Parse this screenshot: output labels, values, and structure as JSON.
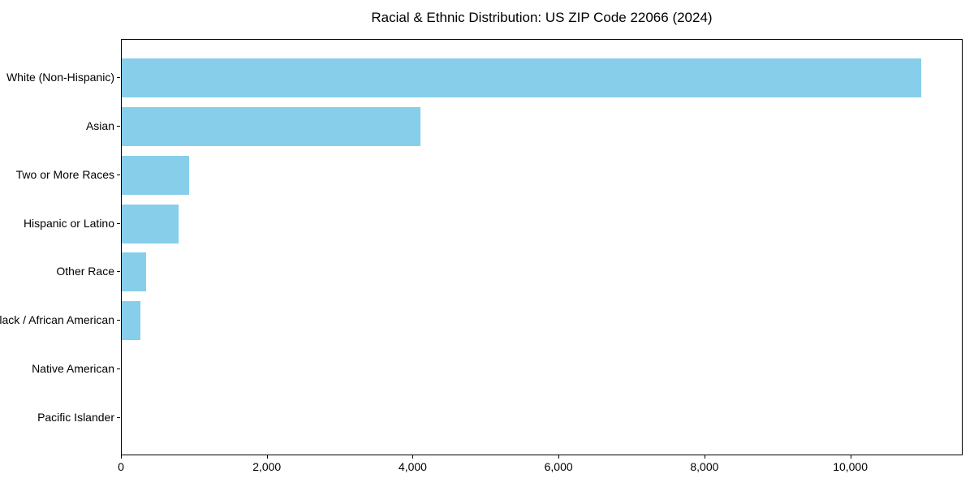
{
  "title": "Racial & Ethnic Distribution: US ZIP Code 22066 (2024)",
  "colors": {
    "bar": "#87CEEB",
    "spine": "#000000",
    "text": "#000000",
    "background": "#ffffff"
  },
  "chart_data": {
    "type": "bar",
    "orientation": "horizontal",
    "title": "Racial & Ethnic Distribution: US ZIP Code 22066 (2024)",
    "categories": [
      "White (Non-Hispanic)",
      "Asian",
      "Two or More Races",
      "Hispanic or Latino",
      "Other Race",
      "Black / African American",
      "Native American",
      "Pacific Islander"
    ],
    "values": [
      10980,
      4100,
      930,
      780,
      330,
      260,
      0,
      0
    ],
    "xlabel": "",
    "ylabel": "",
    "xlim": [
      0,
      11540
    ],
    "x_ticks": [
      0,
      2000,
      4000,
      6000,
      8000,
      10000
    ],
    "x_tick_labels": [
      "0",
      "2,000",
      "4,000",
      "6,000",
      "8,000",
      "10,000"
    ],
    "grid": false,
    "legend": false,
    "bar_color": "#87CEEB"
  }
}
